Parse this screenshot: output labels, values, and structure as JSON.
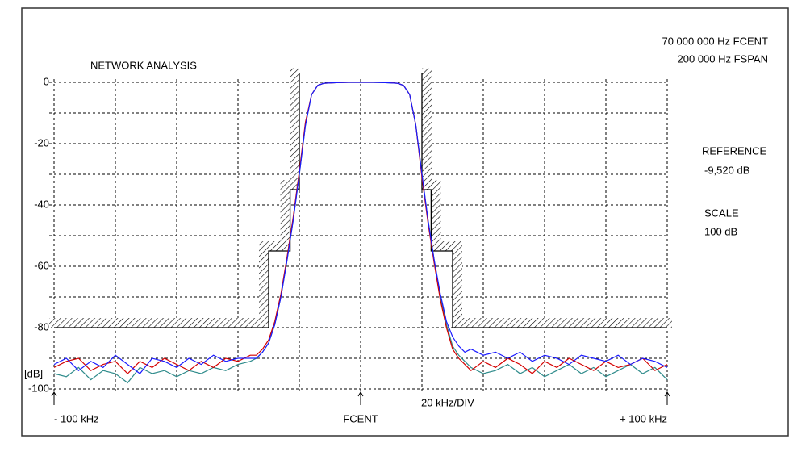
{
  "chart_data": {
    "type": "line",
    "title": "NETWORK ANALYSIS",
    "info": [
      "70 000 000 Hz FCENT",
      "200 000 Hz FSPAN"
    ],
    "reference_label": "REFERENCE",
    "reference_value": "-9,520 dB",
    "scale_label": "SCALE",
    "scale_value": "100 dB",
    "y_label": "[dB]",
    "division_label": "20 kHz/DIV",
    "xlim": [
      -100,
      100
    ],
    "ylim": [
      -100,
      0
    ],
    "xticks": [
      {
        "value": -100,
        "label": "- 100 kHz"
      },
      {
        "value": 0,
        "label": "FCENT"
      },
      {
        "value": 100,
        "label": "+ 100 kHz"
      }
    ],
    "xgrid": [
      -100,
      -80,
      -60,
      -40,
      -20,
      0,
      20,
      40,
      60,
      80,
      100
    ],
    "yticks": [
      0,
      -20,
      -40,
      -60,
      -80,
      -100
    ],
    "ygrid": [
      0,
      -10,
      -20,
      -30,
      -40,
      -50,
      -60,
      -70,
      -80,
      -90,
      -100
    ],
    "grid": true,
    "x": [
      -100,
      -96,
      -92,
      -88,
      -84,
      -80,
      -76,
      -72,
      -68,
      -64,
      -60,
      -56,
      -52,
      -48,
      -44,
      -40,
      -36,
      -34,
      -32,
      -30,
      -28,
      -26,
      -24,
      -22,
      -20,
      -18,
      -16,
      -14,
      -12,
      -8,
      -4,
      0,
      4,
      8,
      12,
      14,
      16,
      18,
      20,
      22,
      24,
      26,
      28,
      30,
      32,
      34,
      36,
      40,
      44,
      48,
      52,
      56,
      60,
      64,
      68,
      72,
      76,
      80,
      84,
      88,
      92,
      96,
      100
    ],
    "series": [
      {
        "color": "#2e8b8b",
        "values": [
          -95,
          -96,
          -93,
          -97,
          -94,
          -95,
          -98,
          -93,
          -95,
          -94,
          -96,
          -94,
          -95,
          -93,
          -94,
          -92,
          -91,
          -90,
          -88,
          -85,
          -79,
          -70,
          -58,
          -45,
          -30,
          -14,
          -4,
          -1,
          -0.3,
          -0.1,
          0,
          0,
          0,
          -0.1,
          -0.3,
          -1,
          -4,
          -14,
          -30,
          -45,
          -58,
          -70,
          -79,
          -86,
          -89,
          -91,
          -93,
          -95,
          -94,
          -92,
          -95,
          -93,
          -96,
          -94,
          -92,
          -95,
          -93,
          -96,
          -94,
          -92,
          -95,
          -93,
          -97
        ]
      },
      {
        "color": "#d40000",
        "values": [
          -93,
          -91,
          -90,
          -94,
          -92,
          -91,
          -95,
          -91,
          -93,
          -90,
          -92,
          -94,
          -91,
          -93,
          -90,
          -91,
          -89,
          -89,
          -87,
          -84,
          -78,
          -69,
          -57,
          -44,
          -29,
          -13,
          -4,
          -1,
          -0.3,
          -0.1,
          0,
          0,
          0,
          0,
          -0.3,
          -1,
          -4,
          -14,
          -31,
          -46,
          -59,
          -71,
          -80,
          -87,
          -90,
          -92,
          -94,
          -91,
          -93,
          -90,
          -92,
          -95,
          -91,
          -93,
          -90,
          -92,
          -94,
          -91,
          -93,
          -92,
          -90,
          -94,
          -92
        ]
      },
      {
        "color": "#1a1aff",
        "values": [
          -92,
          -90,
          -94,
          -91,
          -93,
          -89,
          -92,
          -95,
          -90,
          -91,
          -93,
          -90,
          -92,
          -89,
          -91,
          -90,
          -90,
          -90,
          -88,
          -85,
          -79,
          -70,
          -58,
          -45,
          -30,
          -14,
          -4,
          -1,
          -0.3,
          -0.1,
          0,
          0,
          0,
          -0.1,
          -0.3,
          -1,
          -4,
          -14,
          -30,
          -45,
          -58,
          -69,
          -78,
          -83,
          -86,
          -88,
          -87,
          -89,
          -88,
          -90,
          -88,
          -91,
          -89,
          -90,
          -92,
          -89,
          -90,
          -91,
          -89,
          -92,
          -90,
          -91,
          -93
        ]
      }
    ],
    "masks": [
      {
        "x": [
          -100,
          -30,
          -30,
          -23,
          -23,
          -20,
          -20
        ],
        "y": [
          -80,
          -80,
          -55,
          -55,
          -35,
          -35,
          3
        ]
      },
      {
        "x": [
          20,
          20,
          23,
          23,
          30,
          30,
          100
        ],
        "y": [
          3,
          -35,
          -35,
          -55,
          -55,
          -80,
          -80
        ]
      }
    ],
    "mask_color": "#000000"
  }
}
